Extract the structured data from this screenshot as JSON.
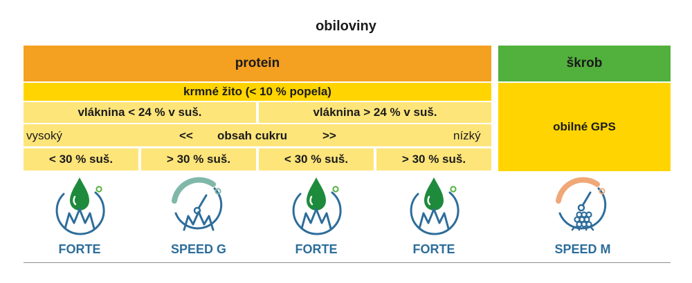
{
  "title": "obiloviny",
  "protein": "protein",
  "skrob": "škrob",
  "krmne_zito": "krmné žito (< 10 % popela)",
  "vlaknina_low": "vláknina < 24 % v suš.",
  "vlaknina_high": "vláknina > 24 % v suš.",
  "obilne_gps": "obilné GPS",
  "sugar": {
    "vysoky": "vysoký",
    "left_arrows": "<<",
    "label": "obsah cukru",
    "right_arrows": ">>",
    "nizky": "nízký"
  },
  "ts_cells": [
    "< 30 % suš.",
    "> 30 % suš.",
    "< 30 % suš.",
    "> 30 % suš."
  ],
  "products": [
    {
      "label": "FORTE",
      "icon": "drop-grass-icon"
    },
    {
      "label": "SPEED G",
      "icon": "speedometer-grass-icon"
    },
    {
      "label": "FORTE",
      "icon": "drop-grass-icon"
    },
    {
      "label": "FORTE",
      "icon": "drop-grass-icon"
    },
    {
      "label": "SPEED M",
      "icon": "speedometer-corn-icon"
    }
  ],
  "colors": {
    "orange": "#f4a020",
    "green": "#52b03c",
    "yellow": "#ffd400",
    "light_yellow": "#fee57a",
    "icon_blue": "#2d6d9a",
    "drop_green": "#1e8a3c",
    "gauge_teal": "#7fb8a8",
    "gauge_peach": "#f0a878"
  }
}
